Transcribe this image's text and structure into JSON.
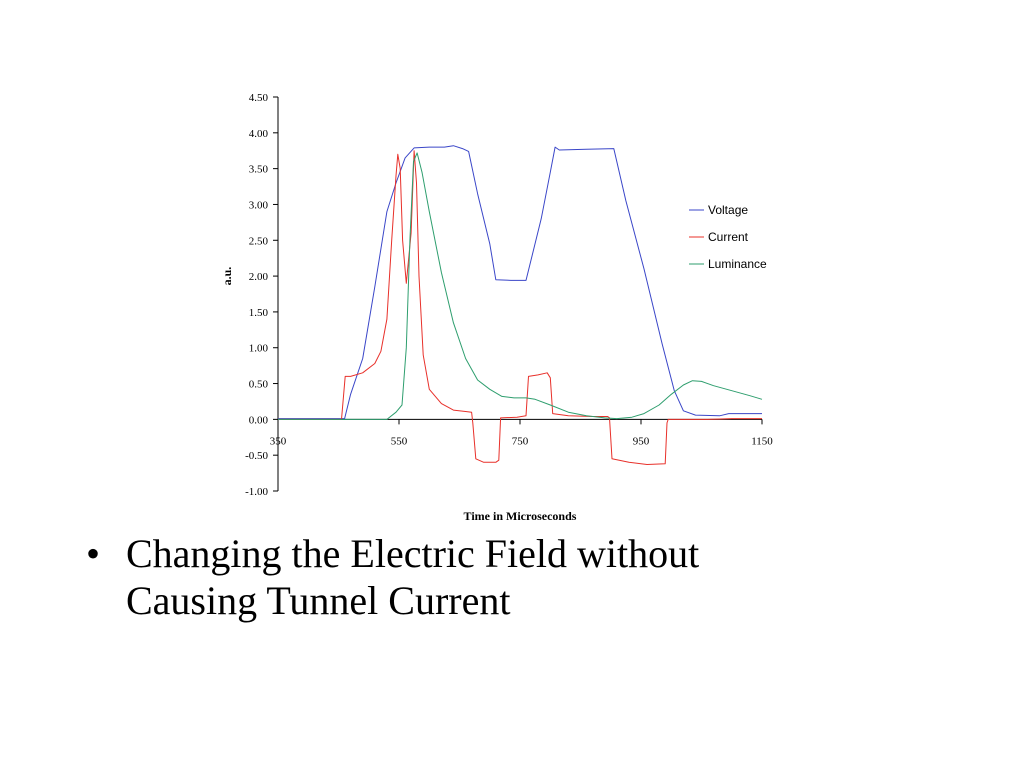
{
  "chart_data": {
    "type": "line",
    "title": "",
    "xlabel": "Time in Microseconds",
    "ylabel": "a.u.",
    "xlim": [
      350,
      1150
    ],
    "ylim": [
      -1.0,
      4.5
    ],
    "x_ticks": [
      350,
      550,
      750,
      950,
      1150
    ],
    "y_ticks": [
      4.5,
      4.0,
      3.5,
      3.0,
      2.5,
      2.0,
      1.5,
      1.0,
      0.5,
      0.0,
      -0.5,
      -1.0
    ],
    "x_tick_labels": [
      "350",
      "550",
      "750",
      "950",
      "1150"
    ],
    "y_tick_labels": [
      "4.50",
      "4.00",
      "3.50",
      "3.00",
      "2.50",
      "2.00",
      "1.50",
      "1.00",
      "0.50",
      "0.00",
      "-0.50",
      "-1.00"
    ],
    "grid": false,
    "legend_position": "right",
    "series": [
      {
        "name": "Voltage",
        "color": "#3a46c8",
        "points": [
          [
            350,
            0.01
          ],
          [
            460,
            0.01
          ],
          [
            470,
            0.35
          ],
          [
            490,
            0.85
          ],
          [
            510,
            1.85
          ],
          [
            530,
            2.9
          ],
          [
            545,
            3.3
          ],
          [
            560,
            3.65
          ],
          [
            575,
            3.79
          ],
          [
            600,
            3.8
          ],
          [
            625,
            3.8
          ],
          [
            640,
            3.82
          ],
          [
            655,
            3.78
          ],
          [
            665,
            3.74
          ],
          [
            680,
            3.15
          ],
          [
            700,
            2.45
          ],
          [
            710,
            1.95
          ],
          [
            735,
            1.94
          ],
          [
            760,
            1.94
          ],
          [
            785,
            2.8
          ],
          [
            800,
            3.45
          ],
          [
            808,
            3.8
          ],
          [
            815,
            3.76
          ],
          [
            860,
            3.77
          ],
          [
            905,
            3.78
          ],
          [
            925,
            3.05
          ],
          [
            955,
            2.1
          ],
          [
            985,
            1.05
          ],
          [
            1005,
            0.4
          ],
          [
            1020,
            0.12
          ],
          [
            1040,
            0.06
          ],
          [
            1080,
            0.05
          ],
          [
            1095,
            0.08
          ],
          [
            1150,
            0.08
          ]
        ]
      },
      {
        "name": "Current",
        "color": "#e8302a",
        "points": [
          [
            350,
            0.0
          ],
          [
            455,
            0.0
          ],
          [
            461,
            0.6
          ],
          [
            470,
            0.6
          ],
          [
            490,
            0.65
          ],
          [
            510,
            0.78
          ],
          [
            520,
            0.95
          ],
          [
            530,
            1.4
          ],
          [
            538,
            2.5
          ],
          [
            545,
            3.4
          ],
          [
            548,
            3.7
          ],
          [
            552,
            3.5
          ],
          [
            556,
            2.5
          ],
          [
            562,
            1.9
          ],
          [
            570,
            2.6
          ],
          [
            575,
            3.75
          ],
          [
            579,
            3.3
          ],
          [
            583,
            2.0
          ],
          [
            590,
            0.9
          ],
          [
            600,
            0.42
          ],
          [
            620,
            0.22
          ],
          [
            640,
            0.13
          ],
          [
            660,
            0.11
          ],
          [
            670,
            0.1
          ],
          [
            672,
            -0.05
          ],
          [
            677,
            -0.55
          ],
          [
            690,
            -0.6
          ],
          [
            710,
            -0.6
          ],
          [
            715,
            -0.57
          ],
          [
            718,
            0.02
          ],
          [
            745,
            0.03
          ],
          [
            760,
            0.05
          ],
          [
            764,
            0.6
          ],
          [
            780,
            0.62
          ],
          [
            795,
            0.65
          ],
          [
            800,
            0.58
          ],
          [
            804,
            0.08
          ],
          [
            830,
            0.05
          ],
          [
            870,
            0.04
          ],
          [
            895,
            0.04
          ],
          [
            898,
            0.02
          ],
          [
            902,
            -0.55
          ],
          [
            930,
            -0.6
          ],
          [
            960,
            -0.63
          ],
          [
            990,
            -0.62
          ],
          [
            993,
            -0.05
          ],
          [
            995,
            0.0
          ],
          [
            1020,
            0.0
          ],
          [
            1060,
            0.0
          ],
          [
            1100,
            0.01
          ],
          [
            1150,
            0.01
          ]
        ]
      },
      {
        "name": "Luminance",
        "color": "#2e9e6e",
        "points": [
          [
            350,
            0.0
          ],
          [
            530,
            0.0
          ],
          [
            545,
            0.1
          ],
          [
            555,
            0.2
          ],
          [
            562,
            1.0
          ],
          [
            568,
            2.5
          ],
          [
            574,
            3.6
          ],
          [
            580,
            3.72
          ],
          [
            588,
            3.45
          ],
          [
            600,
            2.9
          ],
          [
            620,
            2.05
          ],
          [
            640,
            1.35
          ],
          [
            660,
            0.85
          ],
          [
            680,
            0.55
          ],
          [
            700,
            0.42
          ],
          [
            720,
            0.32
          ],
          [
            740,
            0.3
          ],
          [
            760,
            0.3
          ],
          [
            775,
            0.28
          ],
          [
            800,
            0.2
          ],
          [
            830,
            0.1
          ],
          [
            860,
            0.05
          ],
          [
            890,
            0.02
          ],
          [
            910,
            0.01
          ],
          [
            935,
            0.03
          ],
          [
            955,
            0.08
          ],
          [
            980,
            0.2
          ],
          [
            1000,
            0.35
          ],
          [
            1020,
            0.48
          ],
          [
            1035,
            0.54
          ],
          [
            1050,
            0.53
          ],
          [
            1070,
            0.47
          ],
          [
            1100,
            0.4
          ],
          [
            1130,
            0.33
          ],
          [
            1150,
            0.28
          ]
        ]
      }
    ]
  },
  "bullets": [
    {
      "bullet": "•",
      "text": "Changing the Electric Field without Causing Tunnel Current"
    }
  ]
}
